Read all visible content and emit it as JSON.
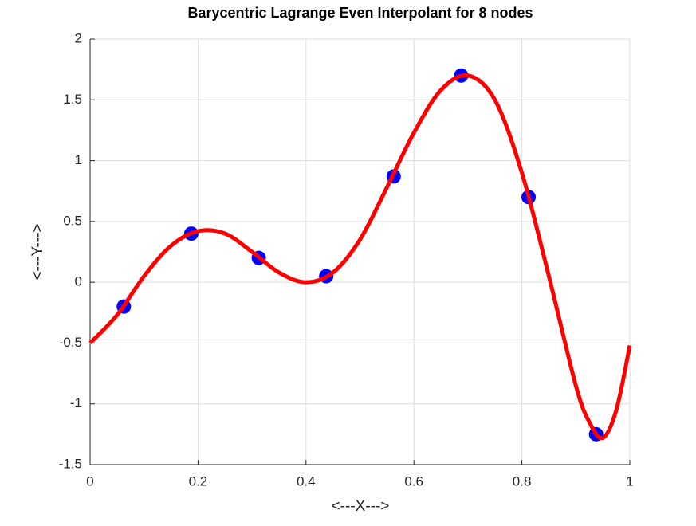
{
  "chart_data": {
    "type": "line",
    "title": "Barycentric Lagrange Even Interpolant for 8 nodes",
    "x_label": "<---X--->",
    "y_label": "<---Y--->",
    "xlim": [
      0,
      1
    ],
    "ylim": [
      -1.5,
      2
    ],
    "xticks": [
      0,
      0.2,
      0.4,
      0.6,
      0.8,
      1
    ],
    "yticks": [
      -1.5,
      -1,
      -0.5,
      0,
      0.5,
      1,
      1.5,
      2
    ],
    "grid": true,
    "series": [
      {
        "type": "scatter",
        "color": "#0000ff",
        "x": [
          0.0625,
          0.1875,
          0.3125,
          0.4375,
          0.5625,
          0.6875,
          0.8125,
          0.9375
        ],
        "values": [
          -0.2,
          0.4,
          0.2,
          0.05,
          0.87,
          1.7,
          0.7,
          -1.25
        ]
      },
      {
        "type": "line",
        "color": "#ff0000",
        "x": [
          0,
          0.05,
          0.1,
          0.15,
          0.2,
          0.25,
          0.3,
          0.35,
          0.4,
          0.45,
          0.5,
          0.55,
          0.6,
          0.65,
          0.7,
          0.75,
          0.8,
          0.85,
          0.9,
          0.925,
          0.95,
          0.975,
          1
        ],
        "values": [
          -0.5,
          -0.27,
          0.05,
          0.3,
          0.42,
          0.4,
          0.25,
          0.08,
          0.0,
          0.08,
          0.35,
          0.78,
          1.23,
          1.58,
          1.7,
          1.5,
          0.9,
          0.05,
          -0.85,
          -1.15,
          -1.28,
          -1.05,
          -0.52
        ]
      }
    ]
  }
}
